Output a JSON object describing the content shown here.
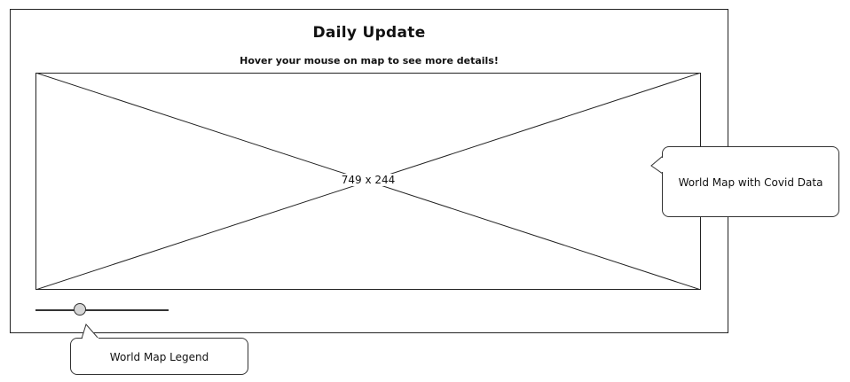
{
  "page": {
    "title": "Daily Update",
    "subtitle": "Hover your mouse on map to see more details!"
  },
  "map": {
    "placeholder_label": "749 x 244"
  },
  "legend": {
    "slider_value": 0.33
  },
  "annotations": {
    "map_note": "World Map with Covid Data",
    "legend_note": "World Map Legend"
  }
}
